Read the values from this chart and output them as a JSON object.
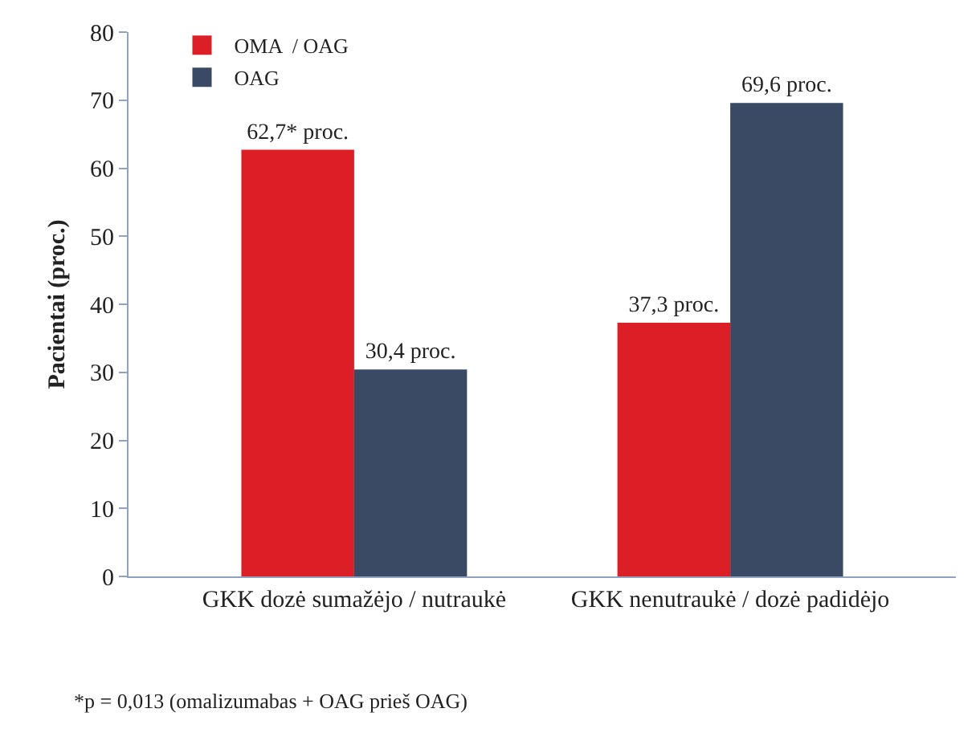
{
  "chart_data": {
    "type": "bar",
    "ylabel": "Pacientai (proc.)",
    "categories": [
      "GKK dozė sumažėjo / nutraukė",
      "GKK nenutraukė / dozė padidėjo"
    ],
    "series": [
      {
        "name": "OMA  / OAG",
        "color": "#dc1f26",
        "values": [
          62.7,
          37.3
        ],
        "value_labels": [
          "62,7* proc.",
          "37,3 proc."
        ]
      },
      {
        "name": "OAG",
        "color": "#3b4a64",
        "values": [
          30.4,
          69.6
        ],
        "value_labels": [
          "30,4 proc.",
          "69,6 proc."
        ]
      }
    ],
    "ylim": [
      0,
      80
    ],
    "yticks": [
      0,
      10,
      20,
      30,
      40,
      50,
      60,
      70,
      80
    ],
    "grid": false,
    "legend": "top left",
    "annotations": [
      "*p = 0,013 (omalizumabas + OAG prieš OAG)"
    ]
  }
}
